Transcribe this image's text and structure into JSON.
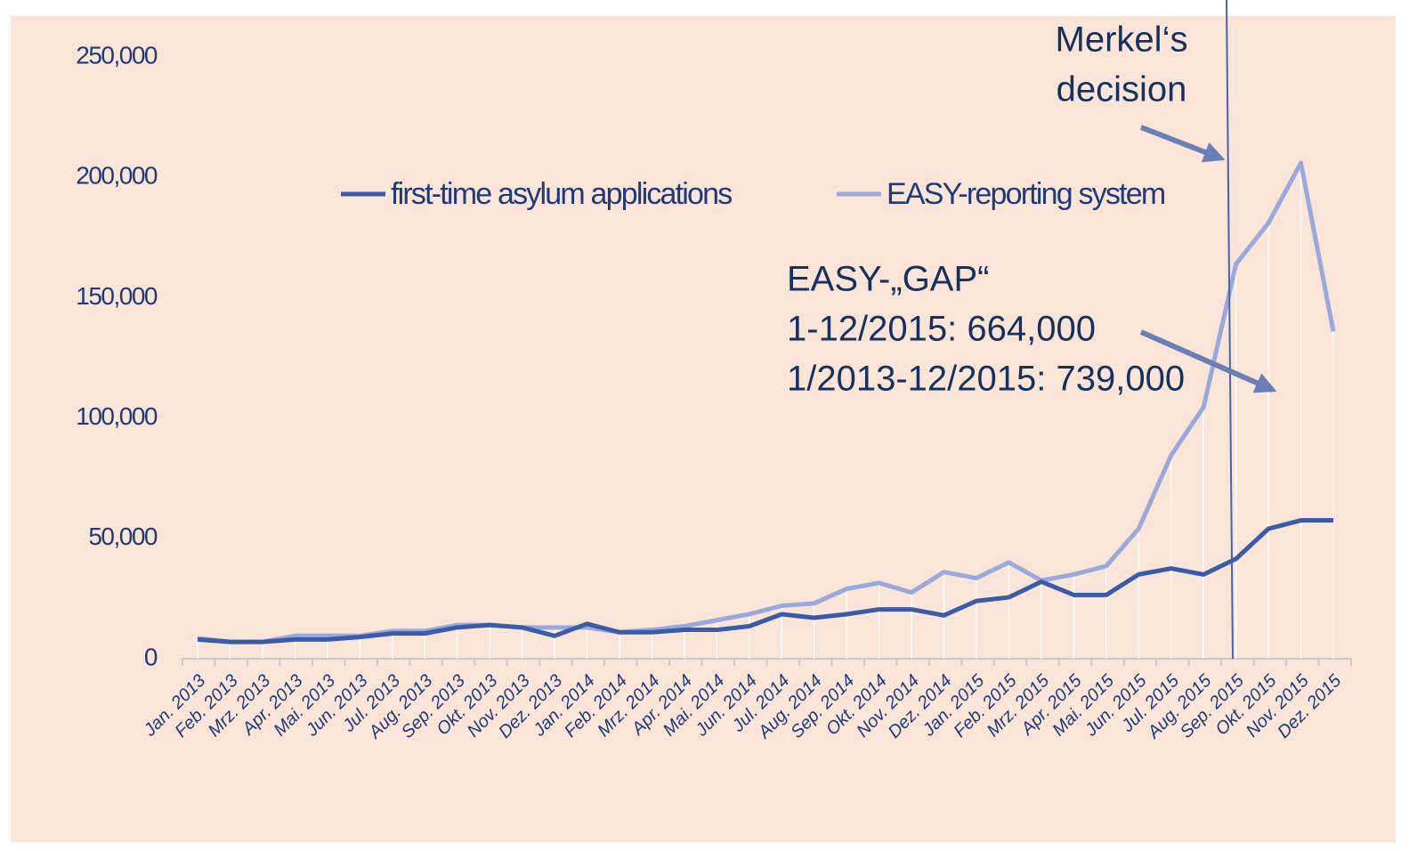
{
  "chart_data": {
    "type": "line",
    "categories": [
      "Jan. 2013",
      "Feb. 2013",
      "Mrz. 2013",
      "Apr. 2013",
      "Mai. 2013",
      "Jun. 2013",
      "Jul. 2013",
      "Aug. 2013",
      "Sep. 2013",
      "Okt. 2013",
      "Nov. 2013",
      "Dez. 2013",
      "Jan. 2014",
      "Feb. 2014",
      "Mrz. 2014",
      "Apr. 2014",
      "Mai. 2014",
      "Jun. 2014",
      "Jul. 2014",
      "Aug. 2014",
      "Sep. 2014",
      "Okt. 2014",
      "Nov. 2014",
      "Dez. 2014",
      "Jan. 2015",
      "Feb. 2015",
      "Mrz. 2015",
      "Apr. 2015",
      "Mai. 2015",
      "Jun. 2015",
      "Jul. 2015",
      "Aug. 2015",
      "Sep. 2015",
      "Okt. 2015",
      "Nov. 2015",
      "Dez. 2015"
    ],
    "series": [
      {
        "name": "first-time asylum applications",
        "color": "#3a5ba8",
        "values": [
          8000,
          7000,
          7000,
          8000,
          8000,
          9000,
          10500,
          10500,
          13000,
          14000,
          13000,
          9500,
          14500,
          11000,
          11000,
          12000,
          12000,
          13500,
          18500,
          17000,
          18500,
          20500,
          20500,
          18000,
          24000,
          25500,
          32000,
          26500,
          26500,
          35000,
          37500,
          35000,
          41500,
          54000,
          57500,
          57500
        ]
      },
      {
        "name": "EASY-reporting system",
        "color": "#9aa9dc",
        "values": [
          8500,
          7000,
          7000,
          9500,
          9500,
          9500,
          11500,
          11500,
          14000,
          14000,
          13000,
          13000,
          13000,
          11000,
          12000,
          13500,
          16000,
          18500,
          22000,
          23000,
          29000,
          31500,
          27500,
          36000,
          33500,
          40000,
          32500,
          35000,
          38500,
          54000,
          84500,
          104500,
          164000,
          181000,
          206000,
          136000
        ]
      }
    ],
    "ylim": [
      0,
      250000
    ],
    "yticks": [
      0,
      {
        "value": 50000,
        "label": "50,000"
      },
      {
        "value": 100000,
        "label": "100,000"
      },
      {
        "value": 150000,
        "label": "150,000"
      },
      {
        "value": 200000,
        "label": "200,000"
      },
      {
        "value": 250000,
        "label": "250,000"
      }
    ],
    "legend": "top",
    "annotations": {
      "merkel": [
        "Merkel‘s",
        "decision"
      ],
      "gap": [
        "EASY-„GAP“",
        "1-12/2015: 664,000",
        "1/2013-12/2015: 739,000"
      ]
    }
  }
}
